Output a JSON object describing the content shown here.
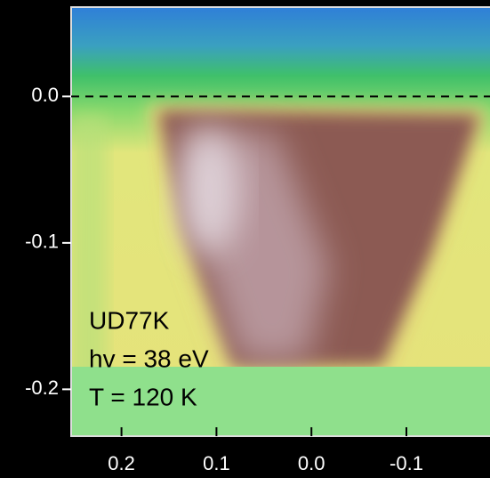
{
  "chart_data": {
    "type": "heatmap",
    "xlim": [
      0.253,
      -0.188
    ],
    "ylim": [
      -0.232,
      0.061
    ],
    "xticks": [
      0.2,
      0.1,
      {
        "value": 0,
        "label": "0.0"
      },
      -0.1
    ],
    "yticks": [
      {
        "value": 0,
        "label": "0.0"
      },
      -0.1,
      -0.2
    ],
    "annotations": [
      "UD77K",
      "hv = 38 eV",
      "T = 120 K"
    ]
  }
}
